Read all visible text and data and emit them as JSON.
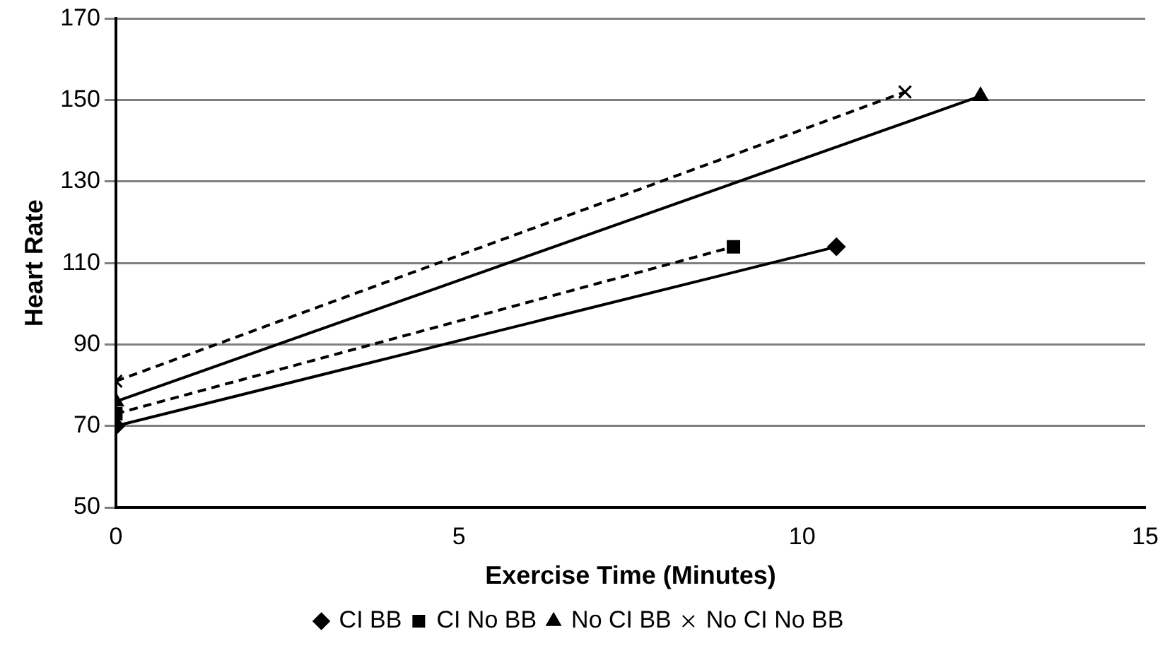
{
  "chart_data": {
    "type": "line",
    "xlabel": "Exercise Time (Minutes)",
    "ylabel": "Heart Rate",
    "xlim": [
      0,
      15
    ],
    "xticks": [
      0,
      5,
      10,
      15
    ],
    "ylim": [
      50,
      170
    ],
    "yticks": [
      50,
      70,
      90,
      110,
      130,
      150,
      170
    ],
    "grid": "y",
    "legend": "bottom",
    "series": [
      {
        "name": "CI BB",
        "color": "#000000",
        "x": [
          0,
          10.5
        ],
        "values": [
          70,
          114
        ],
        "marker": "diamond",
        "line_style": "solid"
      },
      {
        "name": "CI No BB",
        "color": "#000000",
        "x": [
          0,
          9
        ],
        "values": [
          73,
          114
        ],
        "marker": "square",
        "line_style": "dashed"
      },
      {
        "name": "No CI BB",
        "color": "#000000",
        "x": [
          0,
          12.6
        ],
        "values": [
          76,
          151
        ],
        "marker": "triangle",
        "line_style": "solid"
      },
      {
        "name": "No CI No BB",
        "color": "#000000",
        "x": [
          0,
          11.5
        ],
        "values": [
          81,
          152
        ],
        "marker": "cross",
        "line_style": "dashed"
      }
    ]
  }
}
